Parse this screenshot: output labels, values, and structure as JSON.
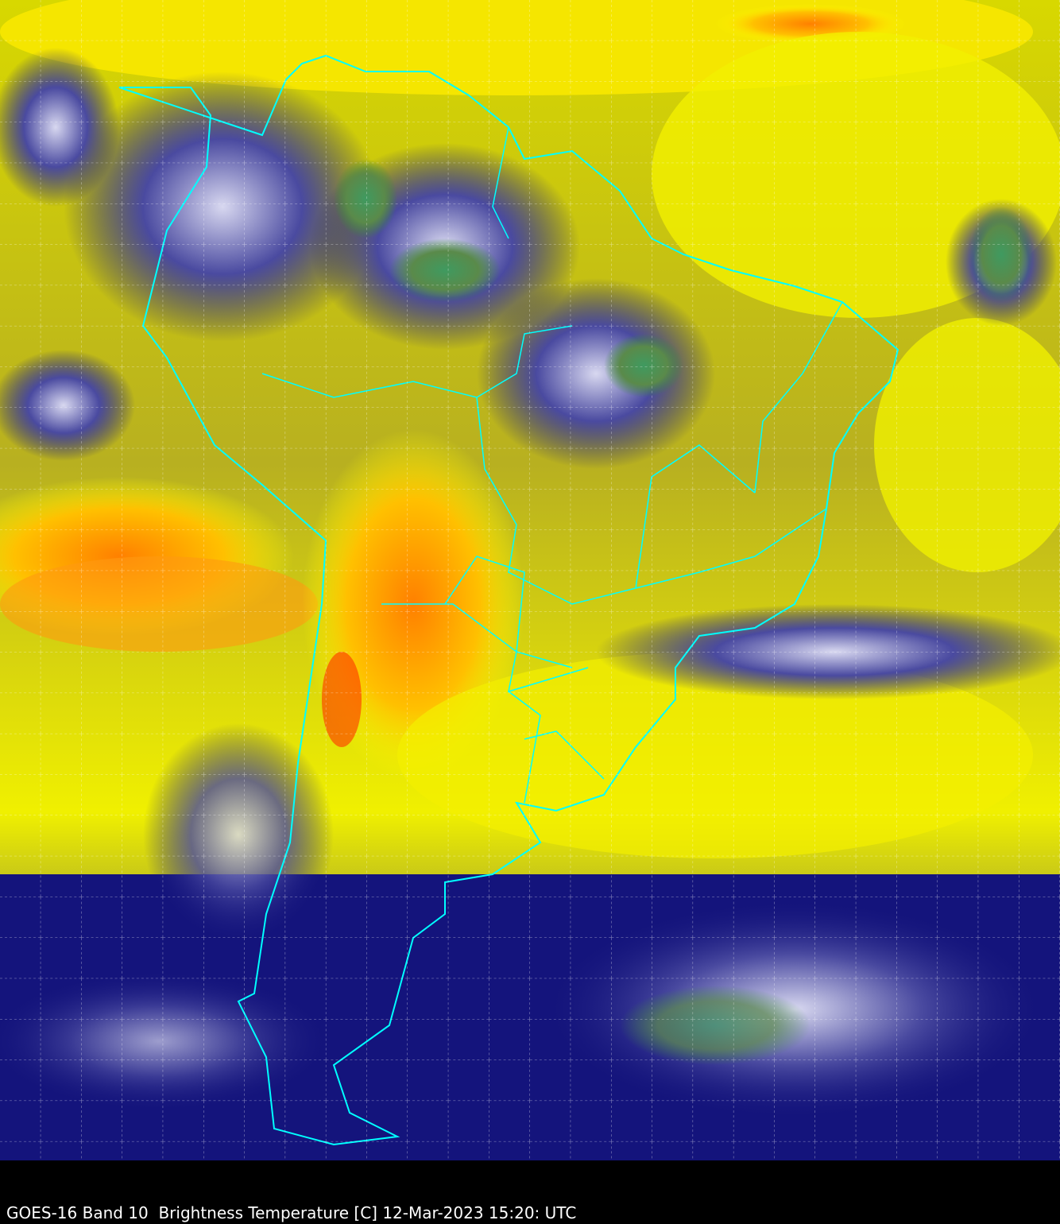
{
  "caption": "GOES-16 Band 10  Brightness Temperature [C] 12-Mar-2023 15:20: UTC",
  "map": {
    "colors": {
      "warm_yellow": "#ffff00",
      "hot_orange": "#ff9a00",
      "hot_red": "#ff3000",
      "cold_navy": "#10107a",
      "cloud_white": "#e8e8f8",
      "cold_green": "#3a8a3a",
      "border_cyan": "#00ffff",
      "grid": "#ffffff",
      "background": "#000000"
    },
    "grid": "dashed graticule",
    "borders": "country and state borders"
  }
}
